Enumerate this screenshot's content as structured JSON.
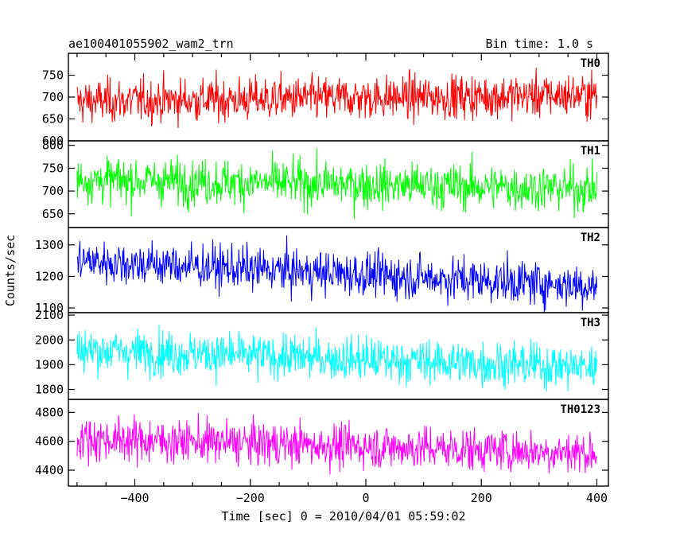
{
  "header": {
    "left": "ae100401055902_wam2_trn",
    "right": "Bin time: 1.0 s"
  },
  "chart_data": {
    "type": "line",
    "xlabel": "Time [sec] 0 = 2010/04/01 05:59:02",
    "ylabel": "Counts/sec",
    "xlim": [
      -515,
      420
    ],
    "xticks": [
      -400,
      -200,
      0,
      200,
      400
    ],
    "x_start": -500,
    "x_end": 400,
    "bin_time": 1.0,
    "panels": [
      {
        "name": "TH0",
        "color": "#ff0000",
        "ylim": [
          600,
          800
        ],
        "yticks": [
          600,
          650,
          700,
          750
        ],
        "mean_start": 690,
        "mean_end": 705,
        "noise": 25
      },
      {
        "name": "TH1",
        "color": "#00ff00",
        "ylim": [
          620,
          810
        ],
        "yticks": [
          650,
          700,
          750,
          800
        ],
        "mean_start": 725,
        "mean_end": 705,
        "noise": 25
      },
      {
        "name": "TH2",
        "color": "#0000ff",
        "ylim": [
          1085,
          1355
        ],
        "yticks": [
          1100,
          1200,
          1300
        ],
        "mean_start": 1250,
        "mean_end": 1170,
        "noise": 35
      },
      {
        "name": "TH3",
        "color": "#00ffff",
        "ylim": [
          1760,
          2110
        ],
        "yticks": [
          1800,
          1900,
          2000,
          2100
        ],
        "mean_start": 1960,
        "mean_end": 1890,
        "noise": 45
      },
      {
        "name": "TH0123",
        "color": "#ff00ff",
        "ylim": [
          4290,
          4890
        ],
        "yticks": [
          4400,
          4600,
          4800
        ],
        "mean_start": 4620,
        "mean_end": 4520,
        "noise": 75
      }
    ]
  }
}
